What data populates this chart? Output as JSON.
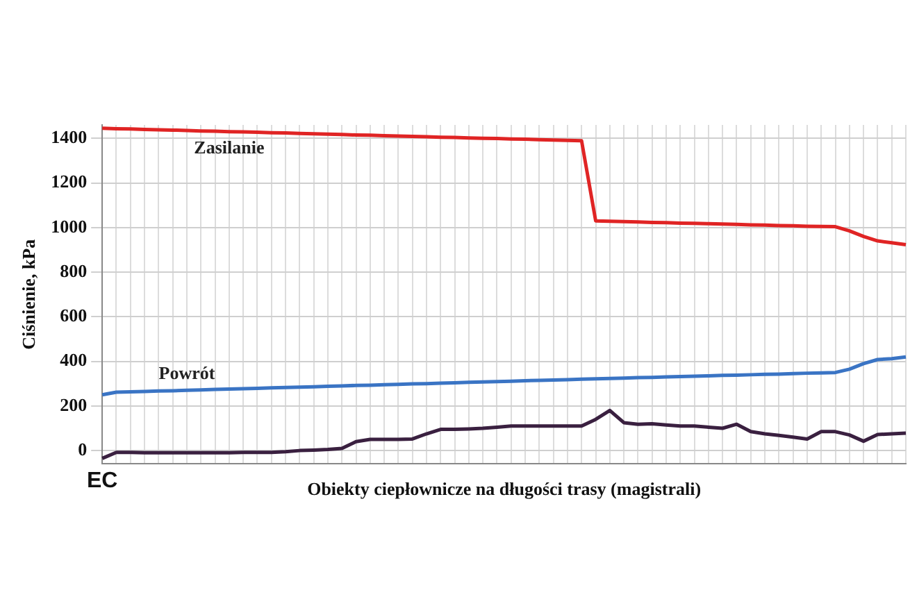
{
  "chart_data": {
    "type": "line",
    "xlabel": "Obiekty ciepłownicze na długości trasy (magistrali)",
    "ylabel": "Ciśnienie, kPa",
    "categories": [
      "EC",
      null,
      null,
      null,
      null,
      null,
      null,
      null,
      null,
      null,
      null,
      null,
      null,
      null,
      null,
      null,
      null,
      null,
      null,
      null,
      null,
      null,
      null,
      null,
      null,
      null,
      null,
      null,
      null,
      null,
      null,
      null,
      null,
      null,
      null,
      null,
      null,
      null,
      null,
      null,
      null,
      null,
      null,
      null,
      null,
      null,
      null,
      null,
      null,
      null,
      null,
      null,
      null,
      null,
      null,
      null,
      null,
      null
    ],
    "ylim": [
      -60,
      1460
    ],
    "yticks": [
      0,
      200,
      400,
      600,
      800,
      1000,
      1200,
      1400
    ],
    "grid": true,
    "legend": false,
    "marker": "none",
    "line_style": "solid",
    "series": [
      {
        "name": "Zasilanie",
        "color": "#e02424",
        "values": [
          1445,
          1443,
          1442,
          1440,
          1438,
          1437,
          1435,
          1433,
          1432,
          1430,
          1429,
          1427,
          1425,
          1424,
          1422,
          1420,
          1419,
          1417,
          1415,
          1414,
          1412,
          1410,
          1409,
          1407,
          1405,
          1404,
          1402,
          1400,
          1399,
          1397,
          1396,
          1394,
          1392,
          1391,
          1389,
          1030,
          1028,
          1027,
          1025,
          1023,
          1022,
          1020,
          1019,
          1017,
          1016,
          1014,
          1012,
          1011,
          1009,
          1008,
          1006,
          1005,
          1004,
          985,
          960,
          940,
          932,
          923
        ]
      },
      {
        "name": "Powrót",
        "color": "#3a74c4",
        "values": [
          250,
          262,
          263,
          265,
          267,
          268,
          270,
          272,
          274,
          276,
          277,
          279,
          281,
          283,
          284,
          286,
          288,
          290,
          292,
          293,
          295,
          297,
          299,
          300,
          302,
          304,
          306,
          308,
          309,
          311,
          313,
          315,
          316,
          318,
          320,
          322,
          323,
          325,
          327,
          328,
          330,
          332,
          333,
          335,
          337,
          338,
          340,
          342,
          343,
          345,
          347,
          348,
          350,
          365,
          390,
          408,
          412,
          420
        ]
      },
      {
        "color": "#3a2040",
        "values": [
          -35,
          -8,
          -8,
          -10,
          -10,
          -10,
          -10,
          -10,
          -10,
          -10,
          -8,
          -8,
          -8,
          -5,
          0,
          2,
          5,
          10,
          40,
          50,
          50,
          50,
          52,
          75,
          95,
          95,
          97,
          100,
          105,
          110,
          110,
          110,
          110,
          110,
          110,
          140,
          180,
          125,
          118,
          120,
          115,
          110,
          110,
          105,
          100,
          118,
          85,
          75,
          68,
          60,
          52,
          85,
          85,
          70,
          42,
          72,
          75,
          78
        ]
      }
    ]
  }
}
